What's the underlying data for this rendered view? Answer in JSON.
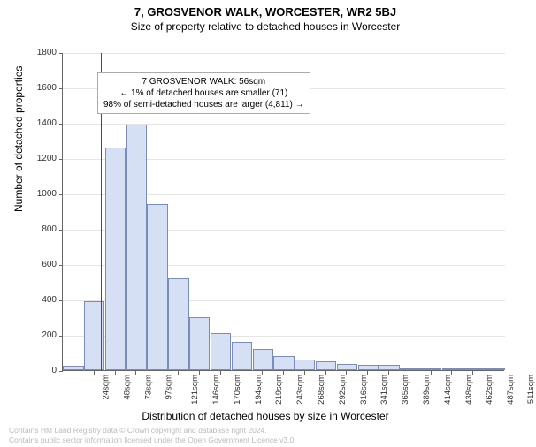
{
  "title": "7, GROSVENOR WALK, WORCESTER, WR2 5BJ",
  "subtitle": "Size of property relative to detached houses in Worcester",
  "ylabel": "Number of detached properties",
  "xlabel": "Distribution of detached houses by size in Worcester",
  "chart": {
    "type": "histogram",
    "ylim": [
      0,
      1800
    ],
    "ytick_step": 200,
    "bar_fill": "#d6e0f5",
    "bar_stroke": "#7a8db8",
    "grid_color": "#e5e5e5",
    "background_color": "#ffffff",
    "marker_line_color": "#ff0000",
    "marker_x_sqm": 56,
    "x_tick_labels": [
      "24sqm",
      "48sqm",
      "73sqm",
      "97sqm",
      "121sqm",
      "146sqm",
      "170sqm",
      "194sqm",
      "219sqm",
      "243sqm",
      "268sqm",
      "292sqm",
      "316sqm",
      "341sqm",
      "365sqm",
      "389sqm",
      "414sqm",
      "438sqm",
      "462sqm",
      "487sqm",
      "511sqm"
    ],
    "bars": [
      25,
      390,
      1260,
      1390,
      940,
      520,
      300,
      210,
      160,
      120,
      80,
      60,
      50,
      35,
      30,
      28,
      10,
      5,
      5,
      5,
      3
    ]
  },
  "annotation": {
    "line1": "7 GROSVENOR WALK: 56sqm",
    "line2": "← 1% of detached houses are smaller (71)",
    "line3": "98% of semi-detached houses are larger (4,811) →"
  },
  "footer": {
    "line1": "Contains HM Land Registry data © Crown copyright and database right 2024.",
    "line2": "Contains public sector information licensed under the Open Government Licence v3.0."
  }
}
